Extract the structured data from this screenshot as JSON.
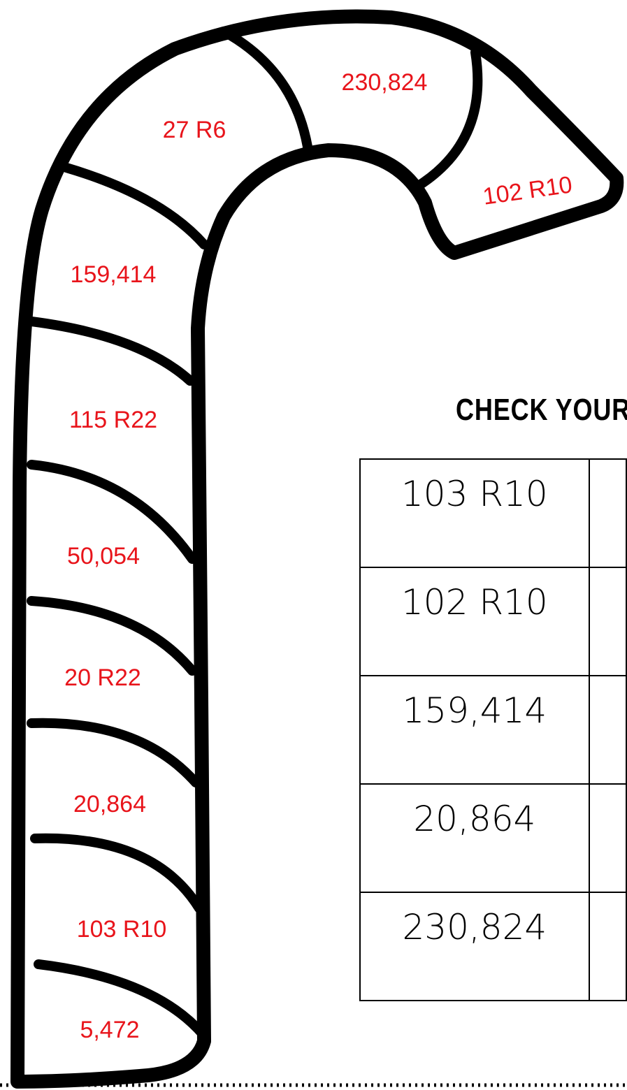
{
  "cane": {
    "labels": [
      "230,824",
      "27 R6",
      "102 R10",
      "159,414",
      "115 R22",
      "50,054",
      "20 R22",
      "20,864",
      "103 R10",
      "5,472"
    ]
  },
  "check": {
    "title": "CHECK YOUR"
  },
  "table": {
    "rows": [
      [
        "103 R10"
      ],
      [
        "102 R10"
      ],
      [
        "159,414"
      ],
      [
        "20,864"
      ],
      [
        "230,824"
      ]
    ]
  }
}
